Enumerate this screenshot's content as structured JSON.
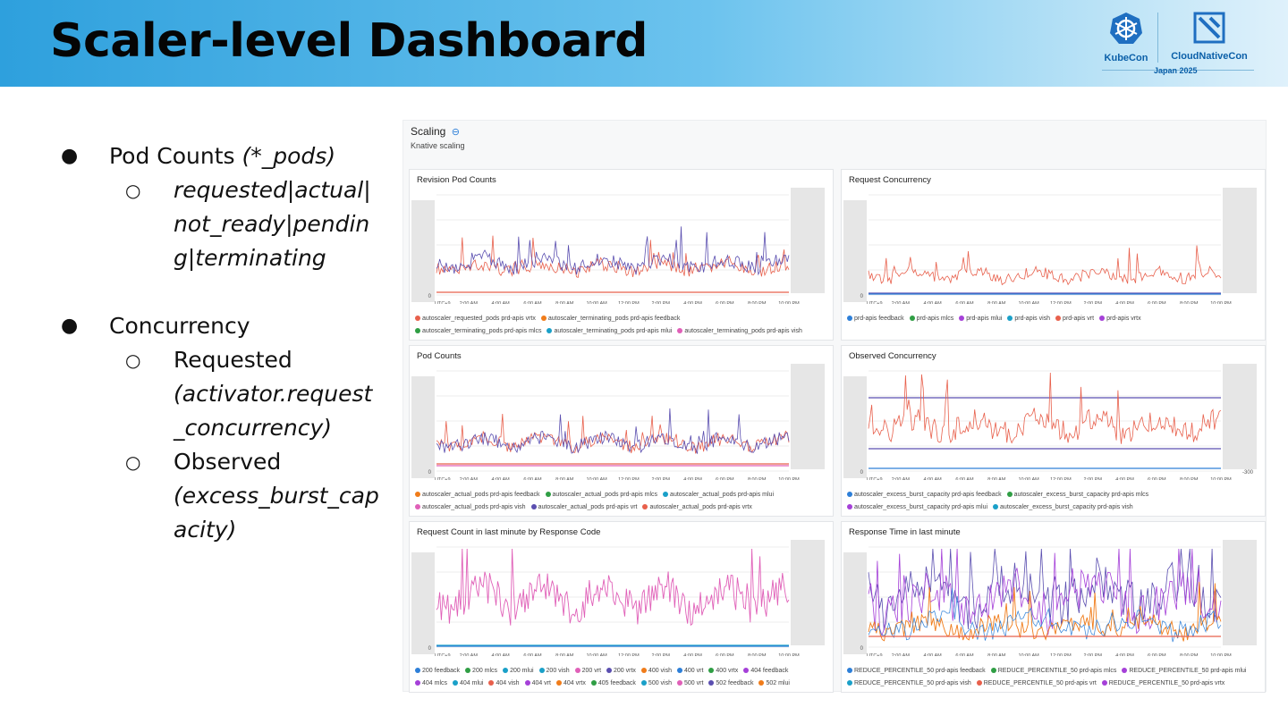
{
  "slide": {
    "title": "Scaler-level Dashboard",
    "logos": {
      "kubecon": "KubeCon",
      "cloudnativecon": "CloudNativeCon",
      "event": "Japan 2025"
    }
  },
  "bullets": {
    "b1_label": "Pod Counts ",
    "b1_italic": "(*_pods)",
    "b1_sub": [
      "requested|actual|",
      "not_ready|pendin",
      "g|terminating"
    ],
    "b2_label": "Concurrency",
    "b2_sub1": "Requested",
    "b2_sub1_detail": [
      "(activator.request",
      "_concurrency)"
    ],
    "b2_sub2": "Observed",
    "b2_sub2_detail": [
      "(excess_burst_cap",
      "acity)"
    ]
  },
  "dashboard": {
    "title": "Scaling",
    "subtitle": "Knative scaling",
    "x_ticks": [
      "UTC+9",
      "2:00 AM",
      "4:00 AM",
      "6:00 AM",
      "8:00 AM",
      "10:00 AM",
      "12:00 PM",
      "2:00 PM",
      "4:00 PM",
      "6:00 PM",
      "8:00 PM",
      "10:00 PM"
    ],
    "colors": {
      "red": "#e8604c",
      "purple": "#5b4fb0",
      "pink": "#e060b8",
      "blue": "#2d7fd8",
      "orange": "#f07c1a",
      "violet": "#a540d8",
      "green": "#2f9e44",
      "teal": "#1aa0c8"
    },
    "panels": [
      {
        "id": "revision-pod-counts",
        "title": "Revision Pod Counts",
        "zero": "0",
        "legend": [
          [
            "autoscaler_requested_pods prd-apis vrtx",
            "autoscaler_terminating_pods prd-apis feedback"
          ],
          [
            "autoscaler_terminating_pods prd-apis mlcs",
            "autoscaler_terminating_pods prd-apis mlui",
            "autoscaler_terminating_pods prd-apis vish"
          ]
        ],
        "legend_colors": [
          [
            "#e8604c",
            "#f07c1a"
          ],
          [
            "#2f9e44",
            "#1aa0c8",
            "#e060b8"
          ]
        ]
      },
      {
        "id": "request-concurrency",
        "title": "Request Concurrency",
        "zero": "0",
        "legend": [
          [
            "prd-apis feedback",
            "prd-apis mlcs",
            "prd-apis mlui",
            "prd-apis vish",
            "prd-apis vrt",
            "prd-apis vrtx"
          ]
        ],
        "legend_colors": [
          [
            "#2d7fd8",
            "#2f9e44",
            "#a540d8",
            "#1aa0c8",
            "#e8604c",
            "#a540d8"
          ]
        ]
      },
      {
        "id": "pod-counts",
        "title": "Pod Counts",
        "zero": "0",
        "legend": [
          [
            "autoscaler_actual_pods prd-apis feedback",
            "autoscaler_actual_pods prd-apis mlcs",
            "autoscaler_actual_pods prd-apis mlui"
          ],
          [
            "autoscaler_actual_pods prd-apis vish",
            "autoscaler_actual_pods prd-apis vrt",
            "autoscaler_actual_pods prd-apis vrtx"
          ]
        ],
        "legend_colors": [
          [
            "#f07c1a",
            "#2f9e44",
            "#1aa0c8"
          ],
          [
            "#e060b8",
            "#5b4fb0",
            "#e8604c"
          ]
        ]
      },
      {
        "id": "observed-concurrency",
        "title": "Observed Concurrency",
        "zero": "0",
        "neg": "-300",
        "legend": [
          [
            "autoscaler_excess_burst_capacity prd-apis feedback",
            "autoscaler_excess_burst_capacity prd-apis mlcs"
          ],
          [
            "autoscaler_excess_burst_capacity prd-apis mlui",
            "autoscaler_excess_burst_capacity prd-apis vish"
          ]
        ],
        "legend_colors": [
          [
            "#2d7fd8",
            "#2f9e44"
          ],
          [
            "#a540d8",
            "#1aa0c8"
          ]
        ]
      },
      {
        "id": "request-count-by-code",
        "title": "Request Count in last minute by Response Code",
        "zero": "0",
        "legend": [
          [
            "200 feedback",
            "200 mlcs",
            "200 mlui",
            "200 vish",
            "200 vrt",
            "200 vrtx",
            "400 vish",
            "400 vrt",
            "400 vrtx",
            "404 feedback"
          ],
          [
            "404 mlcs",
            "404 mlui",
            "404 vish",
            "404 vrt",
            "404 vrtx",
            "405 feedback",
            "500 vish",
            "500 vrt",
            "502 feedback",
            "502 mlui"
          ]
        ],
        "legend_colors": [
          [
            "#2d7fd8",
            "#2f9e44",
            "#1aa0c8",
            "#1aa0c8",
            "#e060b8",
            "#5b4fb0",
            "#f07c1a",
            "#2d7fd8",
            "#2f9e44",
            "#a540d8"
          ],
          [
            "#a540d8",
            "#1aa0c8",
            "#e8604c",
            "#a540d8",
            "#f07c1a",
            "#2f9e44",
            "#1aa0c8",
            "#e060b8",
            "#5b4fb0",
            "#f07c1a"
          ]
        ]
      },
      {
        "id": "response-time",
        "title": "Response Time in last minute",
        "zero": "0",
        "legend": [
          [
            "REDUCE_PERCENTILE_50 prd-apis feedback",
            "REDUCE_PERCENTILE_50 prd-apis mlcs",
            "REDUCE_PERCENTILE_50 prd-apis mlui"
          ],
          [
            "REDUCE_PERCENTILE_50 prd-apis vish",
            "REDUCE_PERCENTILE_50 prd-apis vrt",
            "REDUCE_PERCENTILE_50 prd-apis vrtx"
          ]
        ],
        "legend_colors": [
          [
            "#2d7fd8",
            "#2f9e44",
            "#a540d8"
          ],
          [
            "#1aa0c8",
            "#e8604c",
            "#a540d8"
          ]
        ]
      }
    ]
  }
}
